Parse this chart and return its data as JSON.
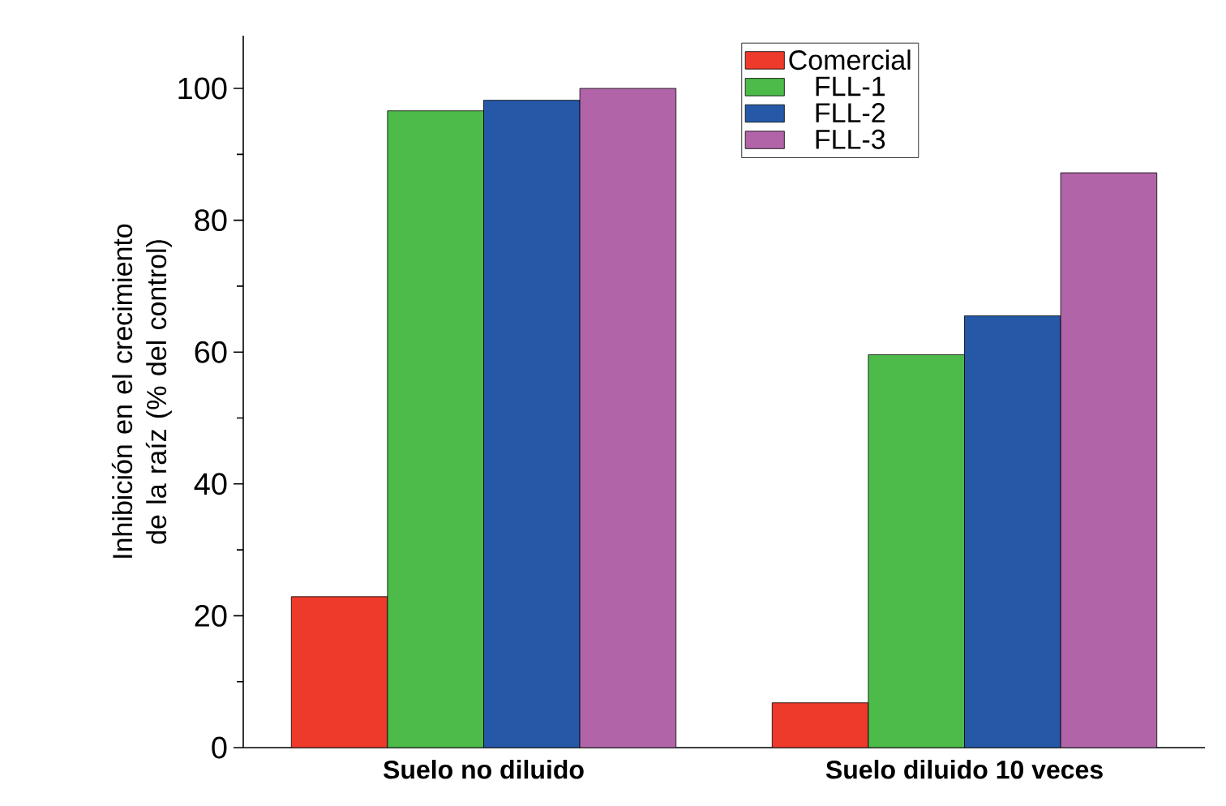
{
  "chart_data": {
    "type": "bar",
    "ylabel": "Inhibición en el crecimiento de la raíz (% del control)",
    "categories": [
      "Suelo no diluido",
      "Suelo diluido 10 veces"
    ],
    "series": [
      {
        "name": "Comercial",
        "color": "#ee3a2a",
        "values": [
          22.9,
          6.8
        ]
      },
      {
        "name": "FLL-1",
        "color": "#4cbb4a",
        "values": [
          96.6,
          59.6
        ]
      },
      {
        "name": "FLL-2",
        "color": "#2559a8",
        "values": [
          98.2,
          65.5
        ]
      },
      {
        "name": "FLL-3",
        "color": "#b165a8",
        "values": [
          100,
          87.2
        ]
      }
    ],
    "ylim": [
      0,
      108
    ],
    "yticks": [
      0,
      20,
      40,
      60,
      80,
      100
    ],
    "grid": false,
    "legend": "top right"
  }
}
